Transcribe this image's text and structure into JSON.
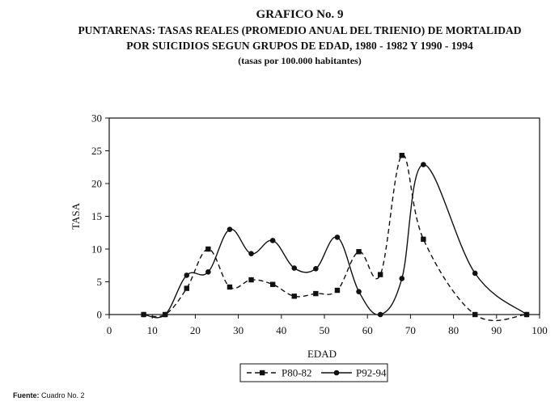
{
  "header": {
    "title": "GRAFICO No. 9",
    "subtitle_line1": "PUNTARENAS: TASAS REALES (PROMEDIO ANUAL DEL TRIENIO) DE MORTALIDAD",
    "subtitle_line2": "POR SUICIDIOS SEGUN GRUPOS DE EDAD, 1980 - 1982 Y 1990 - 1994",
    "subtitle_line3": "(tasas por 100.000 habitantes)"
  },
  "source": {
    "label": "Fuente:",
    "text": "Cuadro No. 2"
  },
  "chart_data": {
    "type": "line",
    "xlabel": "EDAD",
    "ylabel": "TASA",
    "xlim": [
      0,
      100
    ],
    "ylim": [
      0,
      30
    ],
    "x_ticks": [
      0,
      10,
      20,
      30,
      40,
      50,
      60,
      70,
      80,
      90,
      100
    ],
    "y_ticks": [
      0,
      5,
      10,
      15,
      20,
      25,
      30
    ],
    "legend_position": "bottom",
    "series": [
      {
        "name": "P80-82",
        "style": "dashed",
        "marker": "square",
        "x": [
          8,
          13,
          18,
          23,
          28,
          33,
          38,
          43,
          48,
          53,
          58,
          63,
          68,
          73,
          85,
          97
        ],
        "y": [
          0,
          0,
          4,
          10,
          4.2,
          5.3,
          4.6,
          2.8,
          3.2,
          3.7,
          9.6,
          6.1,
          24.3,
          11.5,
          0,
          0
        ]
      },
      {
        "name": "P92-94",
        "style": "solid",
        "marker": "circle",
        "x": [
          8,
          13,
          18,
          23,
          28,
          33,
          38,
          43,
          48,
          53,
          58,
          63,
          68,
          73,
          85,
          97
        ],
        "y": [
          0,
          0,
          6,
          6.5,
          13,
          9.3,
          11.3,
          7.1,
          7,
          11.8,
          3.5,
          0,
          5.5,
          22.9,
          6.3,
          0
        ]
      }
    ]
  }
}
